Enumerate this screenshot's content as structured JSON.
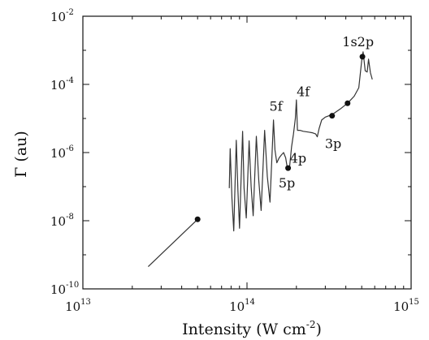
{
  "chart_data": {
    "type": "line",
    "xlabel": {
      "main": "Intensity (W cm",
      "sup": "-2",
      "tail": ")"
    },
    "ylabel": "Γ (au)",
    "x_scale": "log",
    "y_scale": "log",
    "xlim": [
      10000000000000.0,
      1000000000000000.0
    ],
    "ylim": [
      1e-10,
      0.01
    ],
    "grid": false,
    "x_ticks": [
      {
        "base": "10",
        "exp": "13",
        "value": 10000000000000.0
      },
      {
        "base": "10",
        "exp": "14",
        "value": 100000000000000.0
      },
      {
        "base": "10",
        "exp": "15",
        "value": 1000000000000000.0
      }
    ],
    "y_ticks": [
      {
        "base": "10",
        "exp": "-2",
        "value": 0.01
      },
      {
        "base": "10",
        "exp": "-4",
        "value": 0.0001
      },
      {
        "base": "10",
        "exp": "-6",
        "value": 1e-06
      },
      {
        "base": "10",
        "exp": "-8",
        "value": 1e-08
      },
      {
        "base": "10",
        "exp": "-10",
        "value": 1e-10
      }
    ],
    "series": [
      {
        "color": "#333333",
        "segments": [
          [
            [
              25000000000000.0,
              4.5e-10
            ],
            [
              50000000000000.0,
              1.1e-08
            ]
          ],
          [
            [
              78000000000000.0,
              9e-08
            ],
            [
              79000000000000.0,
              1.3e-06
            ],
            [
              81000000000000.0,
              4.4e-08
            ],
            [
              83000000000000.0,
              5e-09
            ],
            [
              86000000000000.0,
              2.3e-06
            ],
            [
              88000000000000.0,
              8e-08
            ],
            [
              90000000000000.0,
              6e-09
            ],
            [
              94000000000000.0,
              4.2e-06
            ],
            [
              96000000000000.0,
              9e-08
            ],
            [
              99000000000000.0,
              1.2e-08
            ],
            [
              103000000000000.0,
              2.2e-06
            ],
            [
              106000000000000.0,
              1e-07
            ],
            [
              109000000000000.0,
              1.4e-08
            ],
            [
              114000000000000.0,
              3e-06
            ],
            [
              118000000000000.0,
              1.5e-07
            ],
            [
              122000000000000.0,
              2e-08
            ],
            [
              128000000000000.0,
              4.5e-06
            ],
            [
              133000000000000.0,
              2e-07
            ],
            [
              138000000000000.0,
              3.5e-08
            ],
            [
              145000000000000.0,
              9e-06
            ],
            [
              148000000000000.0,
              1.2e-06
            ],
            [
              152000000000000.0,
              5e-07
            ],
            [
              157000000000000.0,
              7e-07
            ],
            [
              162000000000000.0,
              8.5e-07
            ],
            [
              167000000000000.0,
              1e-06
            ],
            [
              172000000000000.0,
              7e-07
            ],
            [
              177000000000000.0,
              3e-07
            ],
            [
              182000000000000.0,
              4e-07
            ],
            [
              187000000000000.0,
              1.5e-06
            ],
            [
              192000000000000.0,
              3.5e-06
            ],
            [
              197000000000000.0,
              1e-05
            ],
            [
              200000000000000.0,
              3.5e-05
            ],
            [
              203000000000000.0,
              4.5e-06
            ],
            [
              210000000000000.0,
              4.5e-06
            ],
            [
              220000000000000.0,
              4.2e-06
            ],
            [
              235000000000000.0,
              4e-06
            ],
            [
              250000000000000.0,
              3.8e-06
            ],
            [
              262000000000000.0,
              3.5e-06
            ],
            [
              268000000000000.0,
              2.9e-06
            ],
            [
              275000000000000.0,
              5e-06
            ],
            [
              285000000000000.0,
              9e-06
            ],
            [
              300000000000000.0,
              1.1e-05
            ],
            [
              330000000000000.0,
              1.3e-05
            ],
            [
              370000000000000.0,
              1.9e-05
            ],
            [
              410000000000000.0,
              2.8e-05
            ],
            [
              450000000000000.0,
              4.5e-05
            ],
            [
              480000000000000.0,
              8e-05
            ],
            [
              500000000000000.0,
              0.0005
            ],
            [
              510000000000000.0,
              0.0009
            ],
            [
              525000000000000.0,
              0.00025
            ],
            [
              540000000000000.0,
              0.00023
            ],
            [
              550000000000000.0,
              0.00055
            ],
            [
              565000000000000.0,
              0.00022
            ],
            [
              580000000000000.0,
              0.00014
            ]
          ]
        ]
      }
    ],
    "markers": [
      {
        "x": 50000000000000.0,
        "y": 1.1e-08
      },
      {
        "x": 178000000000000.0,
        "y": 3.5e-07
      },
      {
        "x": 330000000000000.0,
        "y": 1.2e-05
      },
      {
        "x": 410000000000000.0,
        "y": 2.8e-05
      },
      {
        "x": 505000000000000.0,
        "y": 0.00065
      }
    ],
    "annotations": [
      {
        "text": "1s2p",
        "x": 475000000000000.0,
        "y": 0.0013
      },
      {
        "text": "4f",
        "x": 220000000000000.0,
        "y": 4.5e-05
      },
      {
        "text": "5f",
        "x": 150000000000000.0,
        "y": 1.7e-05
      },
      {
        "text": "3p",
        "x": 335000000000000.0,
        "y": 1.35e-06
      },
      {
        "text": "4p",
        "x": 205000000000000.0,
        "y": 5e-07
      },
      {
        "text": "5p",
        "x": 175000000000000.0,
        "y": 9.5e-08
      }
    ]
  }
}
